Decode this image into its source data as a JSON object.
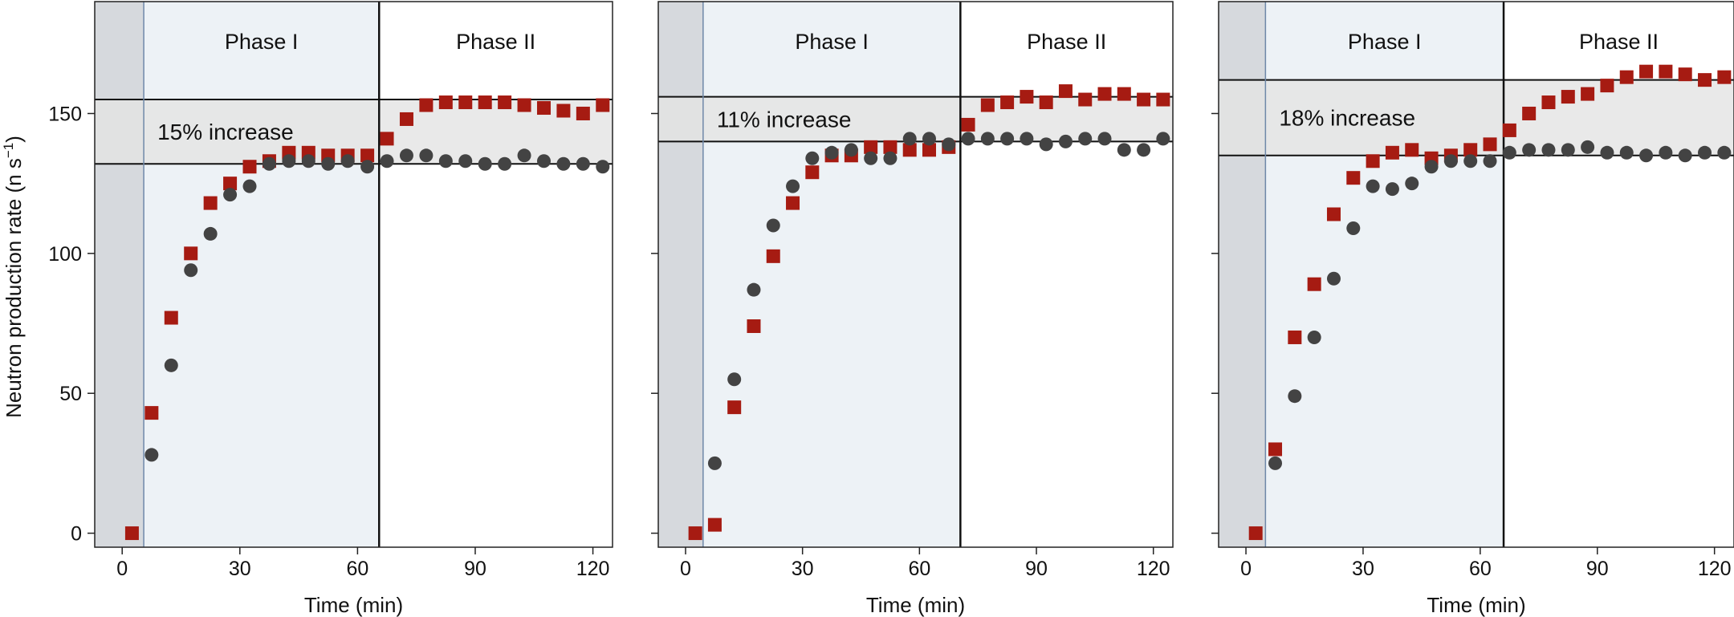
{
  "figure": {
    "ylabel": "Neutron production rate (n s",
    "ylabel_sup": "−1",
    "ylabel_close": ")"
  },
  "colors": {
    "series_a": "#a61b12",
    "series_b": "#434343",
    "pre_shade": "#d6d9dd",
    "phase1_shade": "#edf2f6",
    "band_shade": "#e4e4e4",
    "axis": "#222222",
    "divider": "#111111",
    "start_line": "#6f88a8"
  },
  "chart_data": [
    {
      "type": "scatter",
      "xlabel": "Time (min)",
      "ylabel": "Neutron production rate (n s⁻¹)",
      "xlim": [
        -7,
        125
      ],
      "ylim": [
        -5,
        190
      ],
      "xticks": [
        0,
        30,
        60,
        90,
        120
      ],
      "yticks": [
        0,
        50,
        100,
        150
      ],
      "show_y_labels": true,
      "start_time": 5.5,
      "phase_boundary": 65.5,
      "phase_labels": [
        "Phase I",
        "Phase II"
      ],
      "band": {
        "low": 132,
        "high": 155,
        "label": "15% increase"
      },
      "series": [
        {
          "name": "squares",
          "marker": "square",
          "x": [
            2.5,
            7.5,
            12.5,
            17.5,
            22.5,
            27.5,
            32.5,
            37.5,
            42.5,
            47.5,
            52.5,
            57.5,
            62.5,
            67.5,
            72.5,
            77.5,
            82.5,
            87.5,
            92.5,
            97.5,
            102.5,
            107.5,
            112.5,
            117.5,
            122.5
          ],
          "y": [
            0,
            43,
            77,
            100,
            118,
            125,
            131,
            133,
            136,
            136,
            135,
            135,
            135,
            141,
            148,
            153,
            154,
            154,
            154,
            154,
            153,
            152,
            151,
            150,
            153
          ]
        },
        {
          "name": "circles",
          "marker": "circle",
          "x": [
            7.5,
            12.5,
            17.5,
            22.5,
            27.5,
            32.5,
            37.5,
            42.5,
            47.5,
            52.5,
            57.5,
            62.5,
            67.5,
            72.5,
            77.5,
            82.5,
            87.5,
            92.5,
            97.5,
            102.5,
            107.5,
            112.5,
            117.5,
            122.5
          ],
          "y": [
            28,
            60,
            94,
            107,
            121,
            124,
            132,
            133,
            133,
            132,
            133,
            131,
            133,
            135,
            135,
            133,
            133,
            132,
            132,
            135,
            133,
            132,
            132,
            131
          ]
        }
      ]
    },
    {
      "type": "scatter",
      "xlabel": "Time (min)",
      "ylabel": "",
      "xlim": [
        -7,
        125
      ],
      "ylim": [
        -5,
        190
      ],
      "xticks": [
        0,
        30,
        60,
        90,
        120
      ],
      "yticks": [
        0,
        50,
        100,
        150
      ],
      "show_y_labels": false,
      "start_time": 4.5,
      "phase_boundary": 70.5,
      "phase_labels": [
        "Phase I",
        "Phase II"
      ],
      "band": {
        "low": 140,
        "high": 156,
        "label": "11% increase"
      },
      "series": [
        {
          "name": "squares",
          "marker": "square",
          "x": [
            2.5,
            7.5,
            12.5,
            17.5,
            22.5,
            27.5,
            32.5,
            37.5,
            42.5,
            47.5,
            52.5,
            57.5,
            62.5,
            67.5,
            72.5,
            77.5,
            82.5,
            87.5,
            92.5,
            97.5,
            102.5,
            107.5,
            112.5,
            117.5,
            122.5
          ],
          "y": [
            0,
            3,
            45,
            74,
            99,
            118,
            129,
            135,
            135,
            138,
            138,
            137,
            137,
            138,
            146,
            153,
            154,
            156,
            154,
            158,
            155,
            157,
            157,
            155,
            155
          ]
        },
        {
          "name": "circles",
          "marker": "circle",
          "x": [
            7.5,
            12.5,
            17.5,
            22.5,
            27.5,
            32.5,
            37.5,
            42.5,
            47.5,
            52.5,
            57.5,
            62.5,
            67.5,
            72.5,
            77.5,
            82.5,
            87.5,
            92.5,
            97.5,
            102.5,
            107.5,
            112.5,
            117.5,
            122.5
          ],
          "y": [
            25,
            55,
            87,
            110,
            124,
            134,
            136,
            137,
            134,
            134,
            141,
            141,
            139,
            141,
            141,
            141,
            141,
            139,
            140,
            141,
            141,
            137,
            137,
            141
          ]
        }
      ]
    },
    {
      "type": "scatter",
      "xlabel": "Time (min)",
      "ylabel": "",
      "xlim": [
        -7,
        125
      ],
      "ylim": [
        -5,
        190
      ],
      "xticks": [
        0,
        30,
        60,
        90,
        120
      ],
      "yticks": [
        0,
        50,
        100,
        150
      ],
      "show_y_labels": false,
      "start_time": 5,
      "phase_boundary": 66,
      "phase_labels": [
        "Phase I",
        "Phase II"
      ],
      "band": {
        "low": 135,
        "high": 162,
        "label": "18% increase"
      },
      "series": [
        {
          "name": "squares",
          "marker": "square",
          "x": [
            2.5,
            7.5,
            12.5,
            17.5,
            22.5,
            27.5,
            32.5,
            37.5,
            42.5,
            47.5,
            52.5,
            57.5,
            62.5,
            67.5,
            72.5,
            77.5,
            82.5,
            87.5,
            92.5,
            97.5,
            102.5,
            107.5,
            112.5,
            117.5,
            122.5
          ],
          "y": [
            0,
            30,
            70,
            89,
            114,
            127,
            133,
            136,
            137,
            134,
            135,
            137,
            139,
            144,
            150,
            154,
            156,
            157,
            160,
            163,
            165,
            165,
            164,
            162,
            163
          ]
        },
        {
          "name": "circles",
          "marker": "circle",
          "x": [
            7.5,
            12.5,
            17.5,
            22.5,
            27.5,
            32.5,
            37.5,
            42.5,
            47.5,
            52.5,
            57.5,
            62.5,
            67.5,
            72.5,
            77.5,
            82.5,
            87.5,
            92.5,
            97.5,
            102.5,
            107.5,
            112.5,
            117.5,
            122.5
          ],
          "y": [
            25,
            49,
            70,
            91,
            109,
            124,
            123,
            125,
            131,
            133,
            133,
            133,
            136,
            137,
            137,
            137,
            138,
            136,
            136,
            135,
            136,
            135,
            136,
            136
          ]
        }
      ]
    }
  ]
}
